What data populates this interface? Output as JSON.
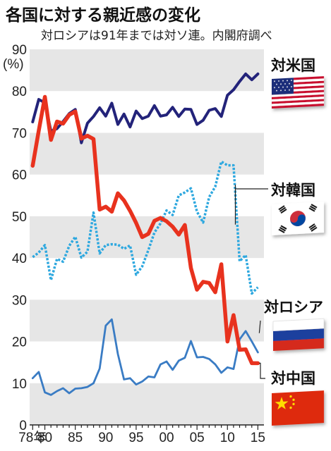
{
  "chart_data": {
    "type": "line",
    "title": "各国に対する親近感の変化",
    "subtitle": "対ロシアは91年までは対ソ連。内閣府調べ",
    "ylabel": "(%)",
    "ylim": [
      0,
      90
    ],
    "yticks": [
      0,
      10,
      20,
      30,
      40,
      50,
      60,
      70,
      80,
      90
    ],
    "xlim": [
      1977.5,
      2016
    ],
    "xticks": [
      {
        "value": 1978,
        "label": "78年"
      },
      {
        "value": 1980,
        "label": "80"
      },
      {
        "value": 1985,
        "label": "85"
      },
      {
        "value": 1990,
        "label": "90"
      },
      {
        "value": 1995,
        "label": "95"
      },
      {
        "value": 2000,
        "label": "00"
      },
      {
        "value": 2005,
        "label": "05"
      },
      {
        "value": 2010,
        "label": "10"
      },
      {
        "value": 2015,
        "label": "15"
      }
    ],
    "grid": "horizontal bands",
    "series": [
      {
        "name": "対米国",
        "color": "#23237a",
        "style": "solid",
        "x": [
          1978,
          1979,
          1980,
          1981,
          1982,
          1983,
          1984,
          1985,
          1986,
          1987,
          1988,
          1989,
          1990,
          1991,
          1992,
          1993,
          1994,
          1995,
          1996,
          1997,
          1998,
          1999,
          2000,
          2001,
          2002,
          2003,
          2004,
          2005,
          2006,
          2007,
          2008,
          2009,
          2010,
          2011,
          2012,
          2013,
          2014,
          2015
        ],
        "values": [
          72.6,
          78.0,
          77.2,
          70.4,
          71.0,
          72.7,
          74.6,
          75.6,
          67.6,
          72.3,
          73.9,
          76.0,
          74.0,
          77.1,
          72.0,
          74.5,
          71.4,
          75.2,
          73.4,
          74.0,
          76.5,
          74.0,
          74.3,
          76.1,
          73.9,
          75.7,
          75.6,
          72.0,
          73.0,
          75.4,
          75.8,
          73.9,
          79.0,
          80.3,
          82.3,
          84.1,
          82.7,
          84.1
        ]
      },
      {
        "name": "対中国",
        "color": "#e8321e",
        "style": "solid",
        "x": [
          1978,
          1979,
          1980,
          1981,
          1982,
          1983,
          1984,
          1985,
          1986,
          1987,
          1988,
          1989,
          1990,
          1991,
          1992,
          1993,
          1994,
          1995,
          1996,
          1997,
          1998,
          1999,
          2000,
          2001,
          2002,
          2003,
          2004,
          2005,
          2006,
          2007,
          2008,
          2009,
          2010,
          2011,
          2012,
          2013,
          2014,
          2015
        ],
        "values": [
          62.1,
          70.5,
          78.6,
          68.3,
          72.7,
          72.2,
          74.3,
          75.1,
          68.6,
          69.3,
          68.5,
          51.6,
          52.3,
          51.1,
          55.5,
          53.8,
          51.3,
          48.4,
          45.0,
          45.8,
          48.9,
          49.6,
          48.8,
          47.5,
          45.6,
          47.9,
          37.6,
          32.4,
          34.3,
          34.0,
          31.8,
          38.5,
          20.0,
          26.3,
          18.0,
          18.1,
          14.8,
          14.8
        ]
      },
      {
        "name": "対韓国",
        "color": "#2ea8df",
        "style": "dotted",
        "x": [
          1978,
          1979,
          1980,
          1981,
          1982,
          1983,
          1984,
          1985,
          1986,
          1987,
          1988,
          1989,
          1990,
          1991,
          1992,
          1993,
          1994,
          1995,
          1996,
          1997,
          1998,
          1999,
          2000,
          2001,
          2002,
          2003,
          2004,
          2005,
          2006,
          2007,
          2008,
          2009,
          2010,
          2011,
          2012,
          2013,
          2014,
          2015
        ],
        "values": [
          40.2,
          41.3,
          43.1,
          34.7,
          39.8,
          39.1,
          42.9,
          45.1,
          40.1,
          41.5,
          50.9,
          41.1,
          43.1,
          43.3,
          43.2,
          42.2,
          43.0,
          36.0,
          38.0,
          41.9,
          46.1,
          48.3,
          51.4,
          50.3,
          55.0,
          55.7,
          56.7,
          51.1,
          48.5,
          54.6,
          57.1,
          63.1,
          62.2,
          62.2,
          39.2,
          40.7,
          31.5,
          33.0
        ]
      },
      {
        "name": "対ロシア",
        "color": "#3a7cc4",
        "style": "solid",
        "x": [
          1978,
          1979,
          1980,
          1981,
          1982,
          1983,
          1984,
          1985,
          1986,
          1987,
          1988,
          1989,
          1990,
          1991,
          1992,
          1993,
          1994,
          1995,
          1996,
          1997,
          1998,
          1999,
          2000,
          2001,
          2002,
          2003,
          2004,
          2005,
          2006,
          2007,
          2008,
          2009,
          2010,
          2011,
          2012,
          2013,
          2014,
          2015
        ],
        "values": [
          11.2,
          12.7,
          7.8,
          7.2,
          8.1,
          8.8,
          7.6,
          8.7,
          8.8,
          9.1,
          10.0,
          13.5,
          23.8,
          25.3,
          17.0,
          10.9,
          11.2,
          9.7,
          10.4,
          11.6,
          11.4,
          14.5,
          15.2,
          13.2,
          15.4,
          16.1,
          20.1,
          16.2,
          16.3,
          15.8,
          14.5,
          12.5,
          13.8,
          13.4,
          20.5,
          22.5,
          20.0,
          17.4
        ]
      }
    ],
    "series_labels": [
      "対米国",
      "対韓国",
      "対ロシア",
      "対中国"
    ]
  },
  "flags": [
    {
      "name": "usa",
      "depicts": "US flag"
    },
    {
      "name": "korea",
      "depicts": "South Korean flag"
    },
    {
      "name": "russia",
      "depicts": "Russian flag"
    },
    {
      "name": "china",
      "depicts": "Chinese flag"
    }
  ]
}
